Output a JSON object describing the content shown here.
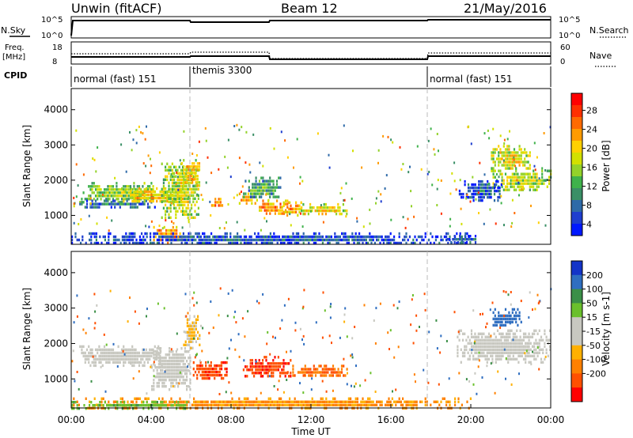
{
  "header": {
    "station": "Unwin (fitACF)",
    "beam": "Beam 12",
    "date": "21/May/2016"
  },
  "top_panels": {
    "nsky_label": "N.Sky",
    "nsearch_label": "N.Search",
    "freq_label_1": "Freq.",
    "freq_label_2": "[MHz]",
    "nave_label": "Nave",
    "cpid_label": "CPID",
    "nsky_ticks": [
      "10^5",
      "10^0"
    ],
    "nsearch_ticks": [
      "10^5",
      "10^0"
    ],
    "freq_ticks": [
      "18",
      "8"
    ],
    "nave_ticks": [
      "60",
      "0"
    ],
    "cpid_segments": [
      {
        "label": "normal (fast) 151",
        "start_hour": 0,
        "end_hour": 6
      },
      {
        "label": "themis 3300",
        "start_hour": 6,
        "end_hour": 18
      },
      {
        "label": "normal (fast) 151",
        "start_hour": 18,
        "end_hour": 24
      }
    ]
  },
  "chart_data": [
    {
      "type": "heatmap",
      "name": "power",
      "ylabel": "Slant Range [km]",
      "colorbar_label": "Power [dB]",
      "ylim": [
        180,
        4600
      ],
      "yticks": [
        1000,
        2000,
        3000,
        4000
      ],
      "colorbar_ticks": [
        "28",
        "24",
        "20",
        "16",
        "12",
        "8",
        "4"
      ],
      "colorbar_colors": [
        "#ff0000",
        "#ff3000",
        "#ff6a00",
        "#ff9b00",
        "#ffd000",
        "#d2e000",
        "#93d22a",
        "#3fb24b",
        "#3a8f66",
        "#2e6aa8",
        "#1e3ecf",
        "#0018ff"
      ],
      "blobs": [
        {
          "x0": 0.4,
          "x1": 4.2,
          "y0": 1400,
          "y1": 1950,
          "v": 16
        },
        {
          "x0": 0.4,
          "x1": 4.2,
          "y0": 1250,
          "y1": 1450,
          "v": 9
        },
        {
          "x0": 2.5,
          "x1": 5.8,
          "y0": 1400,
          "y1": 1800,
          "v": 22
        },
        {
          "x0": 4.1,
          "x1": 5.5,
          "y0": 250,
          "y1": 700,
          "v": 26
        },
        {
          "x0": 4.5,
          "x1": 6.4,
          "y0": 900,
          "y1": 2500,
          "v": 18
        },
        {
          "x0": 5.5,
          "x1": 6.4,
          "y0": 1800,
          "y1": 2600,
          "v": 22
        },
        {
          "x0": 7.0,
          "x1": 7.6,
          "y0": 1250,
          "y1": 1500,
          "v": 26
        },
        {
          "x0": 8.3,
          "x1": 9.3,
          "y0": 1350,
          "y1": 1650,
          "v": 24
        },
        {
          "x0": 9.3,
          "x1": 10.8,
          "y0": 1050,
          "y1": 1450,
          "v": 25
        },
        {
          "x0": 10.6,
          "x1": 11.5,
          "y0": 1000,
          "y1": 1400,
          "v": 24
        },
        {
          "x0": 11.4,
          "x1": 13.9,
          "y0": 1050,
          "y1": 1350,
          "v": 20
        },
        {
          "x0": 8.6,
          "x1": 10.5,
          "y0": 1500,
          "y1": 2100,
          "v": 12
        },
        {
          "x0": 21.0,
          "x1": 24.0,
          "y0": 1700,
          "y1": 2300,
          "v": 18
        },
        {
          "x0": 21.0,
          "x1": 23.0,
          "y0": 2300,
          "y1": 3000,
          "v": 20
        },
        {
          "x0": 19.4,
          "x1": 21.6,
          "y0": 1450,
          "y1": 2000,
          "v": 7
        },
        {
          "x0": 0.0,
          "x1": 20.0,
          "y0": 200,
          "y1": 520,
          "v": 7
        },
        {
          "x0": 18.8,
          "x1": 20.5,
          "y0": 230,
          "y1": 450,
          "v": 8
        }
      ]
    },
    {
      "type": "heatmap",
      "name": "velocity",
      "ylabel": "Slant Range [km]",
      "colorbar_label": "Velocity [m s-1]",
      "ylim": [
        180,
        4600
      ],
      "yticks": [
        1000,
        2000,
        3000,
        4000
      ],
      "xticks": [
        "00:00",
        "04:00",
        "08:00",
        "12:00",
        "16:00",
        "20:00",
        "00:00"
      ],
      "xlabel": "Time UT",
      "colorbar_ticks": [
        "200",
        "100",
        "50",
        "15",
        "-15",
        "-50",
        "-100",
        "-200"
      ],
      "colorbar_colors": [
        "#1434c8",
        "#2f6ec0",
        "#3b8f48",
        "#6ac02c",
        "#c8c8c0",
        "#c8c8c0",
        "#ffb000",
        "#ff8000",
        "#ff5000",
        "#ff0000"
      ],
      "blobs": [
        {
          "x0": 0.4,
          "x1": 4.5,
          "y0": 1400,
          "y1": 1950,
          "v": 0
        },
        {
          "x0": 4.0,
          "x1": 6.0,
          "y0": 700,
          "y1": 1900,
          "v": 0
        },
        {
          "x0": 6.0,
          "x1": 7.8,
          "y0": 1000,
          "y1": 1500,
          "v": -180
        },
        {
          "x0": 5.6,
          "x1": 6.4,
          "y0": 1900,
          "y1": 2800,
          "v": -20
        },
        {
          "x0": 8.5,
          "x1": 11.0,
          "y0": 1050,
          "y1": 1650,
          "v": -190
        },
        {
          "x0": 10.8,
          "x1": 13.9,
          "y0": 1050,
          "y1": 1400,
          "v": -90
        },
        {
          "x0": 19.3,
          "x1": 24.0,
          "y0": 1500,
          "y1": 2400,
          "v": 0
        },
        {
          "x0": 21.0,
          "x1": 22.5,
          "y0": 2500,
          "y1": 3000,
          "v": 150
        },
        {
          "x0": 0.0,
          "x1": 20.0,
          "y0": 200,
          "y1": 480,
          "v": -60
        },
        {
          "x0": 0.0,
          "x1": 6.0,
          "y0": 200,
          "y1": 380,
          "v": 40
        }
      ]
    }
  ]
}
